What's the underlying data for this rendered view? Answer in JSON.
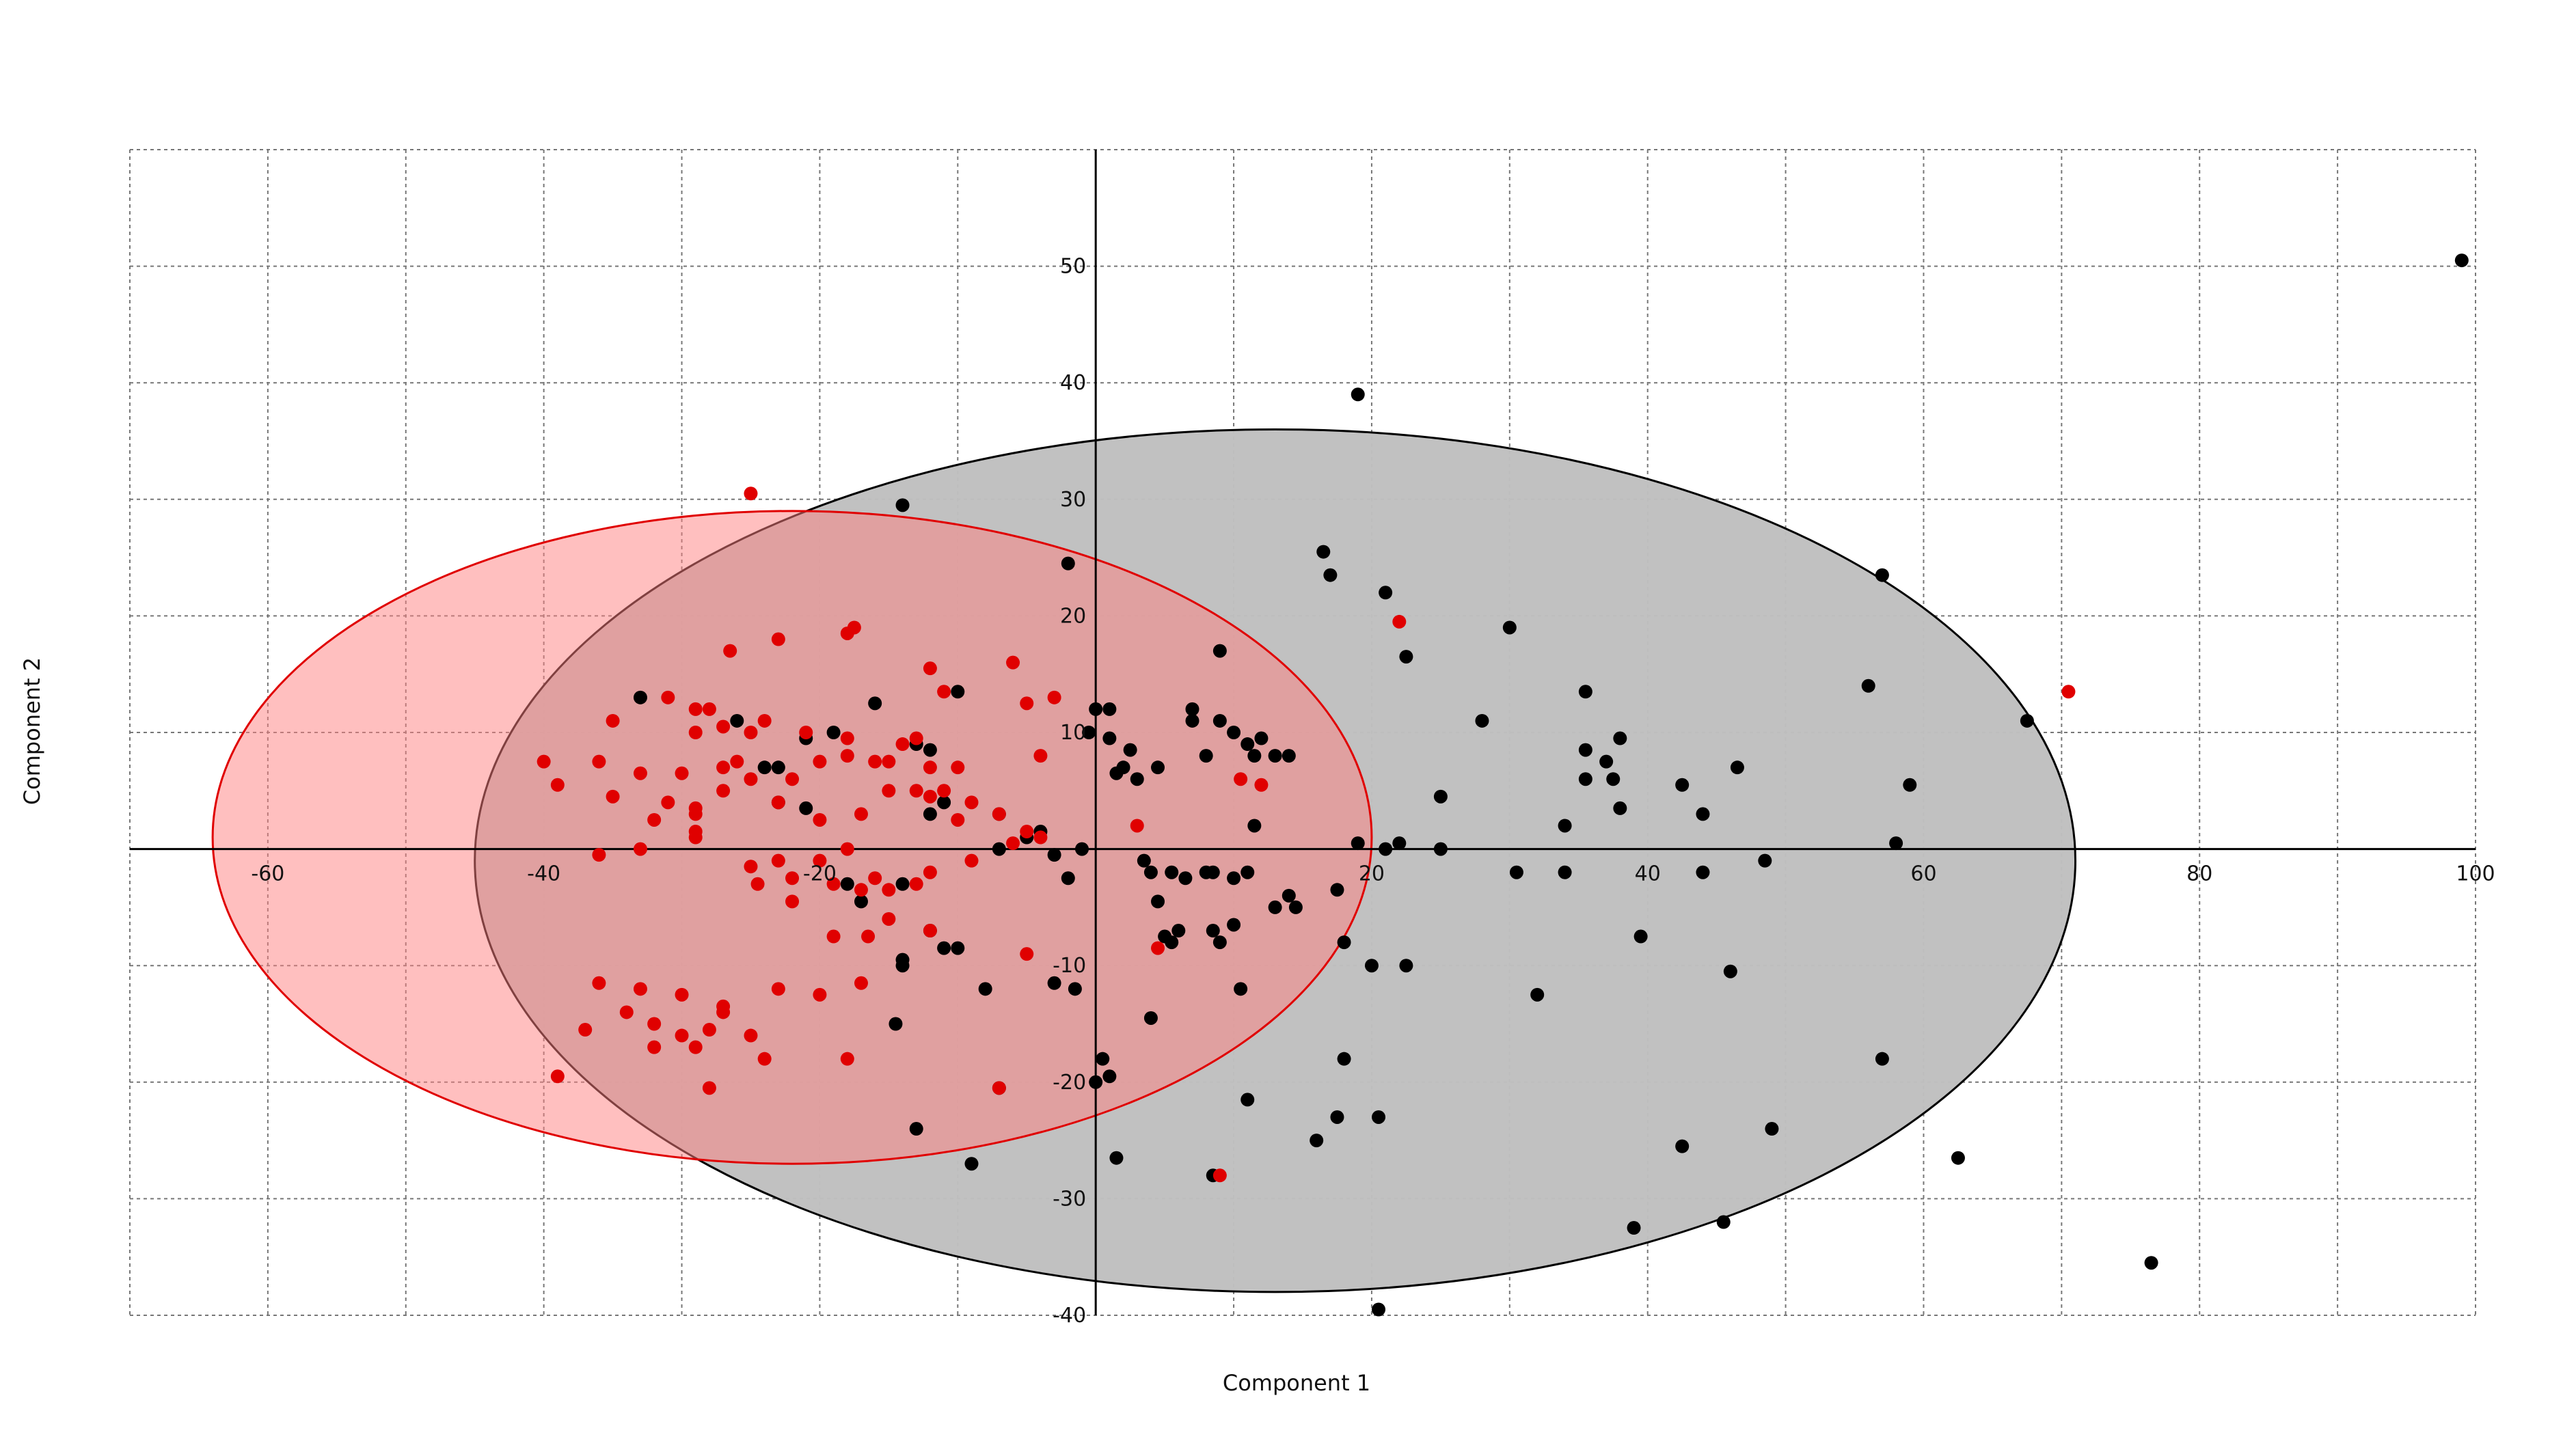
{
  "chart_data": {
    "type": "scatter",
    "xlabel": "Component 1",
    "ylabel": "Component 2",
    "xlim": [
      -70,
      100
    ],
    "ylim": [
      -40,
      60
    ],
    "grid": true,
    "x_tick_labels": [
      "-60",
      "-40",
      "-20",
      "20",
      "40",
      "60",
      "80",
      "100"
    ],
    "y_tick_labels": [
      "50",
      "40",
      "30",
      "20",
      "10",
      "-10",
      "-20",
      "-30",
      "-40"
    ],
    "ellipses": [
      {
        "color": "#000000",
        "fill": "#bfbfbf",
        "center": [
          13,
          -1
        ],
        "rx": 58,
        "ry": 37
      },
      {
        "color": "#e00000",
        "fill": "#ff7f7f",
        "center": [
          -22,
          1
        ],
        "rx": 42,
        "ry": 28
      }
    ],
    "series": [
      {
        "color": "#000000",
        "points": [
          [
            99,
            50.5
          ],
          [
            19,
            39
          ],
          [
            -14,
            29.5
          ],
          [
            -2,
            24.5
          ],
          [
            16.5,
            25.5
          ],
          [
            17,
            23.5
          ],
          [
            21,
            22
          ],
          [
            57,
            23.5
          ],
          [
            30,
            19
          ],
          [
            22.5,
            16.5
          ],
          [
            67.5,
            11
          ],
          [
            56,
            14
          ],
          [
            35.5,
            13.5
          ],
          [
            28,
            11
          ],
          [
            46.5,
            7
          ],
          [
            38,
            9.5
          ],
          [
            35.5,
            8.5
          ],
          [
            37,
            7.5
          ],
          [
            35.5,
            6
          ],
          [
            37.5,
            6
          ],
          [
            42.5,
            5.5
          ],
          [
            59,
            5.5
          ],
          [
            44,
            3
          ],
          [
            38,
            3.5
          ],
          [
            34,
            2
          ],
          [
            25,
            4.5
          ],
          [
            58,
            0.5
          ],
          [
            48.5,
            -1
          ],
          [
            30.5,
            -2
          ],
          [
            34,
            -2
          ],
          [
            44,
            -2
          ],
          [
            19,
            0.5
          ],
          [
            21,
            0
          ],
          [
            22,
            0.5
          ],
          [
            25,
            0
          ],
          [
            -33,
            13
          ],
          [
            -26,
            11
          ],
          [
            -21,
            9.5
          ],
          [
            -19,
            10
          ],
          [
            -16,
            12.5
          ],
          [
            -10,
            13.5
          ],
          [
            -13,
            9
          ],
          [
            -12,
            8.5
          ],
          [
            -11,
            4
          ],
          [
            -12,
            3
          ],
          [
            -24,
            7
          ],
          [
            -23,
            7
          ],
          [
            -23,
            4
          ],
          [
            -21,
            3.5
          ],
          [
            -7,
            3
          ],
          [
            -5,
            1
          ],
          [
            -4,
            1.5
          ],
          [
            -3,
            -0.5
          ],
          [
            -2,
            -2.5
          ],
          [
            -7,
            0
          ],
          [
            -1,
            0
          ],
          [
            0,
            12
          ],
          [
            1,
            12
          ],
          [
            -0.5,
            10
          ],
          [
            1,
            9.5
          ],
          [
            2.5,
            8.5
          ],
          [
            3,
            6
          ],
          [
            1.5,
            6.5
          ],
          [
            2,
            7
          ],
          [
            4.5,
            7
          ],
          [
            7,
            12
          ],
          [
            7,
            11
          ],
          [
            9,
            11
          ],
          [
            10,
            10
          ],
          [
            11,
            9
          ],
          [
            12,
            9.5
          ],
          [
            11.5,
            8
          ],
          [
            13,
            8
          ],
          [
            14,
            8
          ],
          [
            8,
            8
          ],
          [
            9,
            17
          ],
          [
            11.5,
            2
          ],
          [
            -18,
            -3
          ],
          [
            -17,
            -4.5
          ],
          [
            -14,
            -3
          ],
          [
            -12,
            -7
          ],
          [
            -11,
            -8.5
          ],
          [
            -10,
            -8.5
          ],
          [
            -14,
            -9.5
          ],
          [
            -14,
            -10
          ],
          [
            -8,
            -12
          ],
          [
            -3,
            -11.5
          ],
          [
            -14.5,
            -15
          ],
          [
            -7,
            -20.5
          ],
          [
            0,
            -20
          ],
          [
            1,
            -19.5
          ],
          [
            0.5,
            -18
          ],
          [
            -9,
            -27
          ],
          [
            -13,
            -24
          ],
          [
            4,
            -14.5
          ],
          [
            3.5,
            -1
          ],
          [
            4,
            -2
          ],
          [
            5.5,
            -2
          ],
          [
            6.5,
            -2.5
          ],
          [
            8,
            -2
          ],
          [
            8.5,
            -2
          ],
          [
            10,
            -2.5
          ],
          [
            11,
            -2
          ],
          [
            4.5,
            -4.5
          ],
          [
            5,
            -7.5
          ],
          [
            5.5,
            -8
          ],
          [
            6,
            -7
          ],
          [
            8.5,
            -7
          ],
          [
            9,
            -8
          ],
          [
            10,
            -6.5
          ],
          [
            13,
            -5
          ],
          [
            14,
            -4
          ],
          [
            14.5,
            -5
          ],
          [
            17.5,
            -3.5
          ],
          [
            18,
            -8
          ],
          [
            18,
            -18
          ],
          [
            16,
            -25
          ],
          [
            17.5,
            -23
          ],
          [
            20,
            -10
          ],
          [
            22.5,
            -10
          ],
          [
            20.5,
            -23
          ],
          [
            11,
            -21.5
          ],
          [
            10.5,
            -12
          ],
          [
            1.5,
            -26.5
          ],
          [
            8.5,
            -28
          ],
          [
            -1.5,
            -12
          ],
          [
            39.5,
            -7.5
          ],
          [
            46,
            -10.5
          ],
          [
            32,
            -12.5
          ],
          [
            42.5,
            -25.5
          ],
          [
            49,
            -24
          ],
          [
            57,
            -18
          ],
          [
            62.5,
            -26.5
          ],
          [
            39,
            -32.5
          ],
          [
            45.5,
            -32
          ],
          [
            76.5,
            -35.5
          ],
          [
            20.5,
            -39.5
          ]
        ]
      },
      {
        "color": "#e00000",
        "points": [
          [
            -25,
            30.5
          ],
          [
            -23,
            18
          ],
          [
            -18,
            18.5
          ],
          [
            -17.5,
            19
          ],
          [
            -26.5,
            17
          ],
          [
            -12,
            15.5
          ],
          [
            -6,
            16
          ],
          [
            -11,
            13.5
          ],
          [
            -5,
            12.5
          ],
          [
            -3,
            13
          ],
          [
            -35,
            11
          ],
          [
            -29,
            12
          ],
          [
            -28,
            12
          ],
          [
            -31,
            13
          ],
          [
            -29,
            10
          ],
          [
            -27,
            10.5
          ],
          [
            -25,
            10
          ],
          [
            -24,
            11
          ],
          [
            -21,
            10
          ],
          [
            -18,
            9.5
          ],
          [
            -13,
            9.5
          ],
          [
            -40,
            7.5
          ],
          [
            -36,
            7.5
          ],
          [
            -39,
            5.5
          ],
          [
            -33,
            6.5
          ],
          [
            -30,
            6.5
          ],
          [
            -31,
            4
          ],
          [
            -29,
            3.5
          ],
          [
            -27,
            7
          ],
          [
            -26,
            7.5
          ],
          [
            -25,
            6
          ],
          [
            -22,
            6
          ],
          [
            -20,
            7.5
          ],
          [
            -18,
            8
          ],
          [
            -16,
            7.5
          ],
          [
            -15,
            7.5
          ],
          [
            -14,
            9
          ],
          [
            -12,
            7
          ],
          [
            -11,
            5
          ],
          [
            -10,
            7
          ],
          [
            -4,
            8
          ],
          [
            -35,
            4.5
          ],
          [
            -32,
            2.5
          ],
          [
            -29,
            3
          ],
          [
            -29,
            1.5
          ],
          [
            -27,
            5
          ],
          [
            -23,
            4
          ],
          [
            -20,
            2.5
          ],
          [
            -17,
            3
          ],
          [
            -15,
            5
          ],
          [
            -13,
            5
          ],
          [
            -12,
            4.5
          ],
          [
            -10,
            2.5
          ],
          [
            -9,
            4
          ],
          [
            -7,
            3
          ],
          [
            -5,
            1.5
          ],
          [
            -36,
            -0.5
          ],
          [
            -33,
            0
          ],
          [
            -29,
            1
          ],
          [
            -25,
            -1.5
          ],
          [
            -23,
            -1
          ],
          [
            -20,
            -1
          ],
          [
            -18,
            0
          ],
          [
            -16,
            -2.5
          ],
          [
            -15,
            -3.5
          ],
          [
            -13,
            -3
          ],
          [
            -12,
            -2
          ],
          [
            -9,
            -1
          ],
          [
            -6,
            0.5
          ],
          [
            -4,
            1
          ],
          [
            -24.5,
            -3
          ],
          [
            -22,
            -2.5
          ],
          [
            -22,
            -4.5
          ],
          [
            -19,
            -3
          ],
          [
            -17,
            -3.5
          ],
          [
            -15,
            -6
          ],
          [
            -19,
            -7.5
          ],
          [
            -16.5,
            -7.5
          ],
          [
            -12,
            -7
          ],
          [
            -5,
            -9
          ],
          [
            -36,
            -11.5
          ],
          [
            -33,
            -12
          ],
          [
            -30,
            -12.5
          ],
          [
            -27,
            -13.5
          ],
          [
            -23,
            -12
          ],
          [
            -20,
            -12.5
          ],
          [
            -17,
            -11.5
          ],
          [
            -34,
            -14
          ],
          [
            -32,
            -15
          ],
          [
            -27,
            -14
          ],
          [
            -37,
            -15.5
          ],
          [
            -32,
            -17
          ],
          [
            -29,
            -17
          ],
          [
            -28,
            -15.5
          ],
          [
            -30,
            -16
          ],
          [
            -25,
            -16
          ],
          [
            -24,
            -18
          ],
          [
            -18,
            -18
          ],
          [
            -28,
            -20.5
          ],
          [
            -39,
            -19.5
          ],
          [
            -7,
            -20.5
          ],
          [
            3,
            2
          ],
          [
            4.5,
            -8.5
          ],
          [
            10.5,
            6
          ],
          [
            12,
            5.5
          ],
          [
            9,
            -28
          ],
          [
            22,
            19.5
          ],
          [
            70.5,
            13.5
          ]
        ]
      }
    ]
  }
}
